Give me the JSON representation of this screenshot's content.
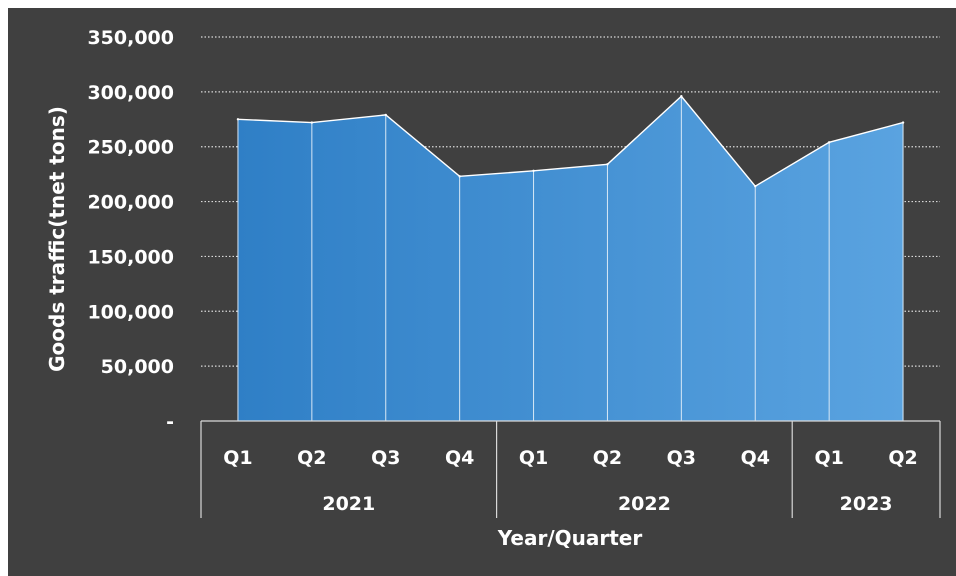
{
  "chart_data": {
    "type": "area",
    "xlabel": "Year/Quarter",
    "ylabel": "Goods traffic(tnet tons)",
    "ylim": [
      0,
      350000
    ],
    "y_ticks": [
      0,
      50000,
      100000,
      150000,
      200000,
      250000,
      300000,
      350000
    ],
    "y_tick_labels": [
      "-",
      "50,000",
      "100,000",
      "150,000",
      "200,000",
      "250,000",
      "300,000",
      "350,000"
    ],
    "grid": "horizontal dotted",
    "colors": {
      "background": "#404040",
      "fill_dark": "#2f7fc6",
      "fill_light": "#5aa3e0",
      "line": "#ffffff"
    },
    "groups": [
      {
        "label": "2021",
        "categories": [
          "Q1",
          "Q2",
          "Q3",
          "Q4"
        ]
      },
      {
        "label": "2022",
        "categories": [
          "Q1",
          "Q2",
          "Q3",
          "Q4"
        ]
      },
      {
        "label": "2023",
        "categories": [
          "Q1",
          "Q2"
        ]
      }
    ],
    "categories": [
      "Q1",
      "Q2",
      "Q3",
      "Q4",
      "Q1",
      "Q2",
      "Q3",
      "Q4",
      "Q1",
      "Q2"
    ],
    "values": [
      275000,
      272000,
      279000,
      223000,
      228000,
      234000,
      296000,
      214000,
      254000,
      272000
    ]
  }
}
